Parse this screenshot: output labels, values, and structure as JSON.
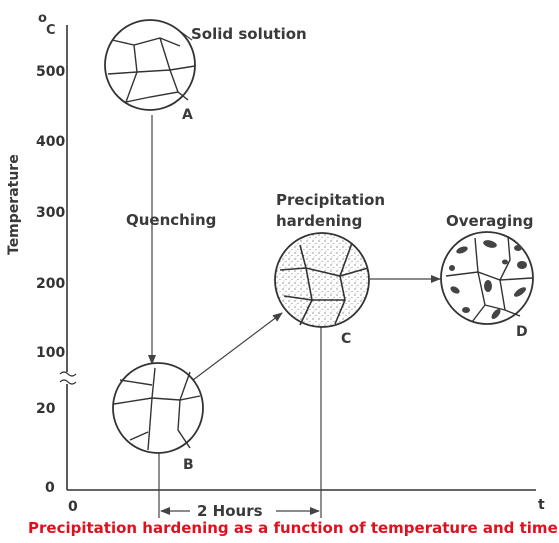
{
  "axes": {
    "y_label": "Temperature",
    "y_unit_o": "o",
    "y_unit_c": "C",
    "x_label": "t",
    "origin_y": "0",
    "origin_x": "0",
    "y_ticks": [
      "500",
      "400",
      "300",
      "200",
      "100",
      "20"
    ]
  },
  "stages": {
    "a": {
      "letter": "A",
      "label": "Solid solution"
    },
    "b": {
      "letter": "B"
    },
    "c": {
      "letter": "C",
      "label_line1": "Precipitation",
      "label_line2": "hardening"
    },
    "d": {
      "letter": "D",
      "label": "Overaging"
    }
  },
  "quenching": "Quenching",
  "duration": "2 Hours",
  "caption": "Precipitation hardening as a function of temperature and time",
  "colors": {
    "caption": "#e0101f",
    "ink": "#3a3a3a"
  }
}
